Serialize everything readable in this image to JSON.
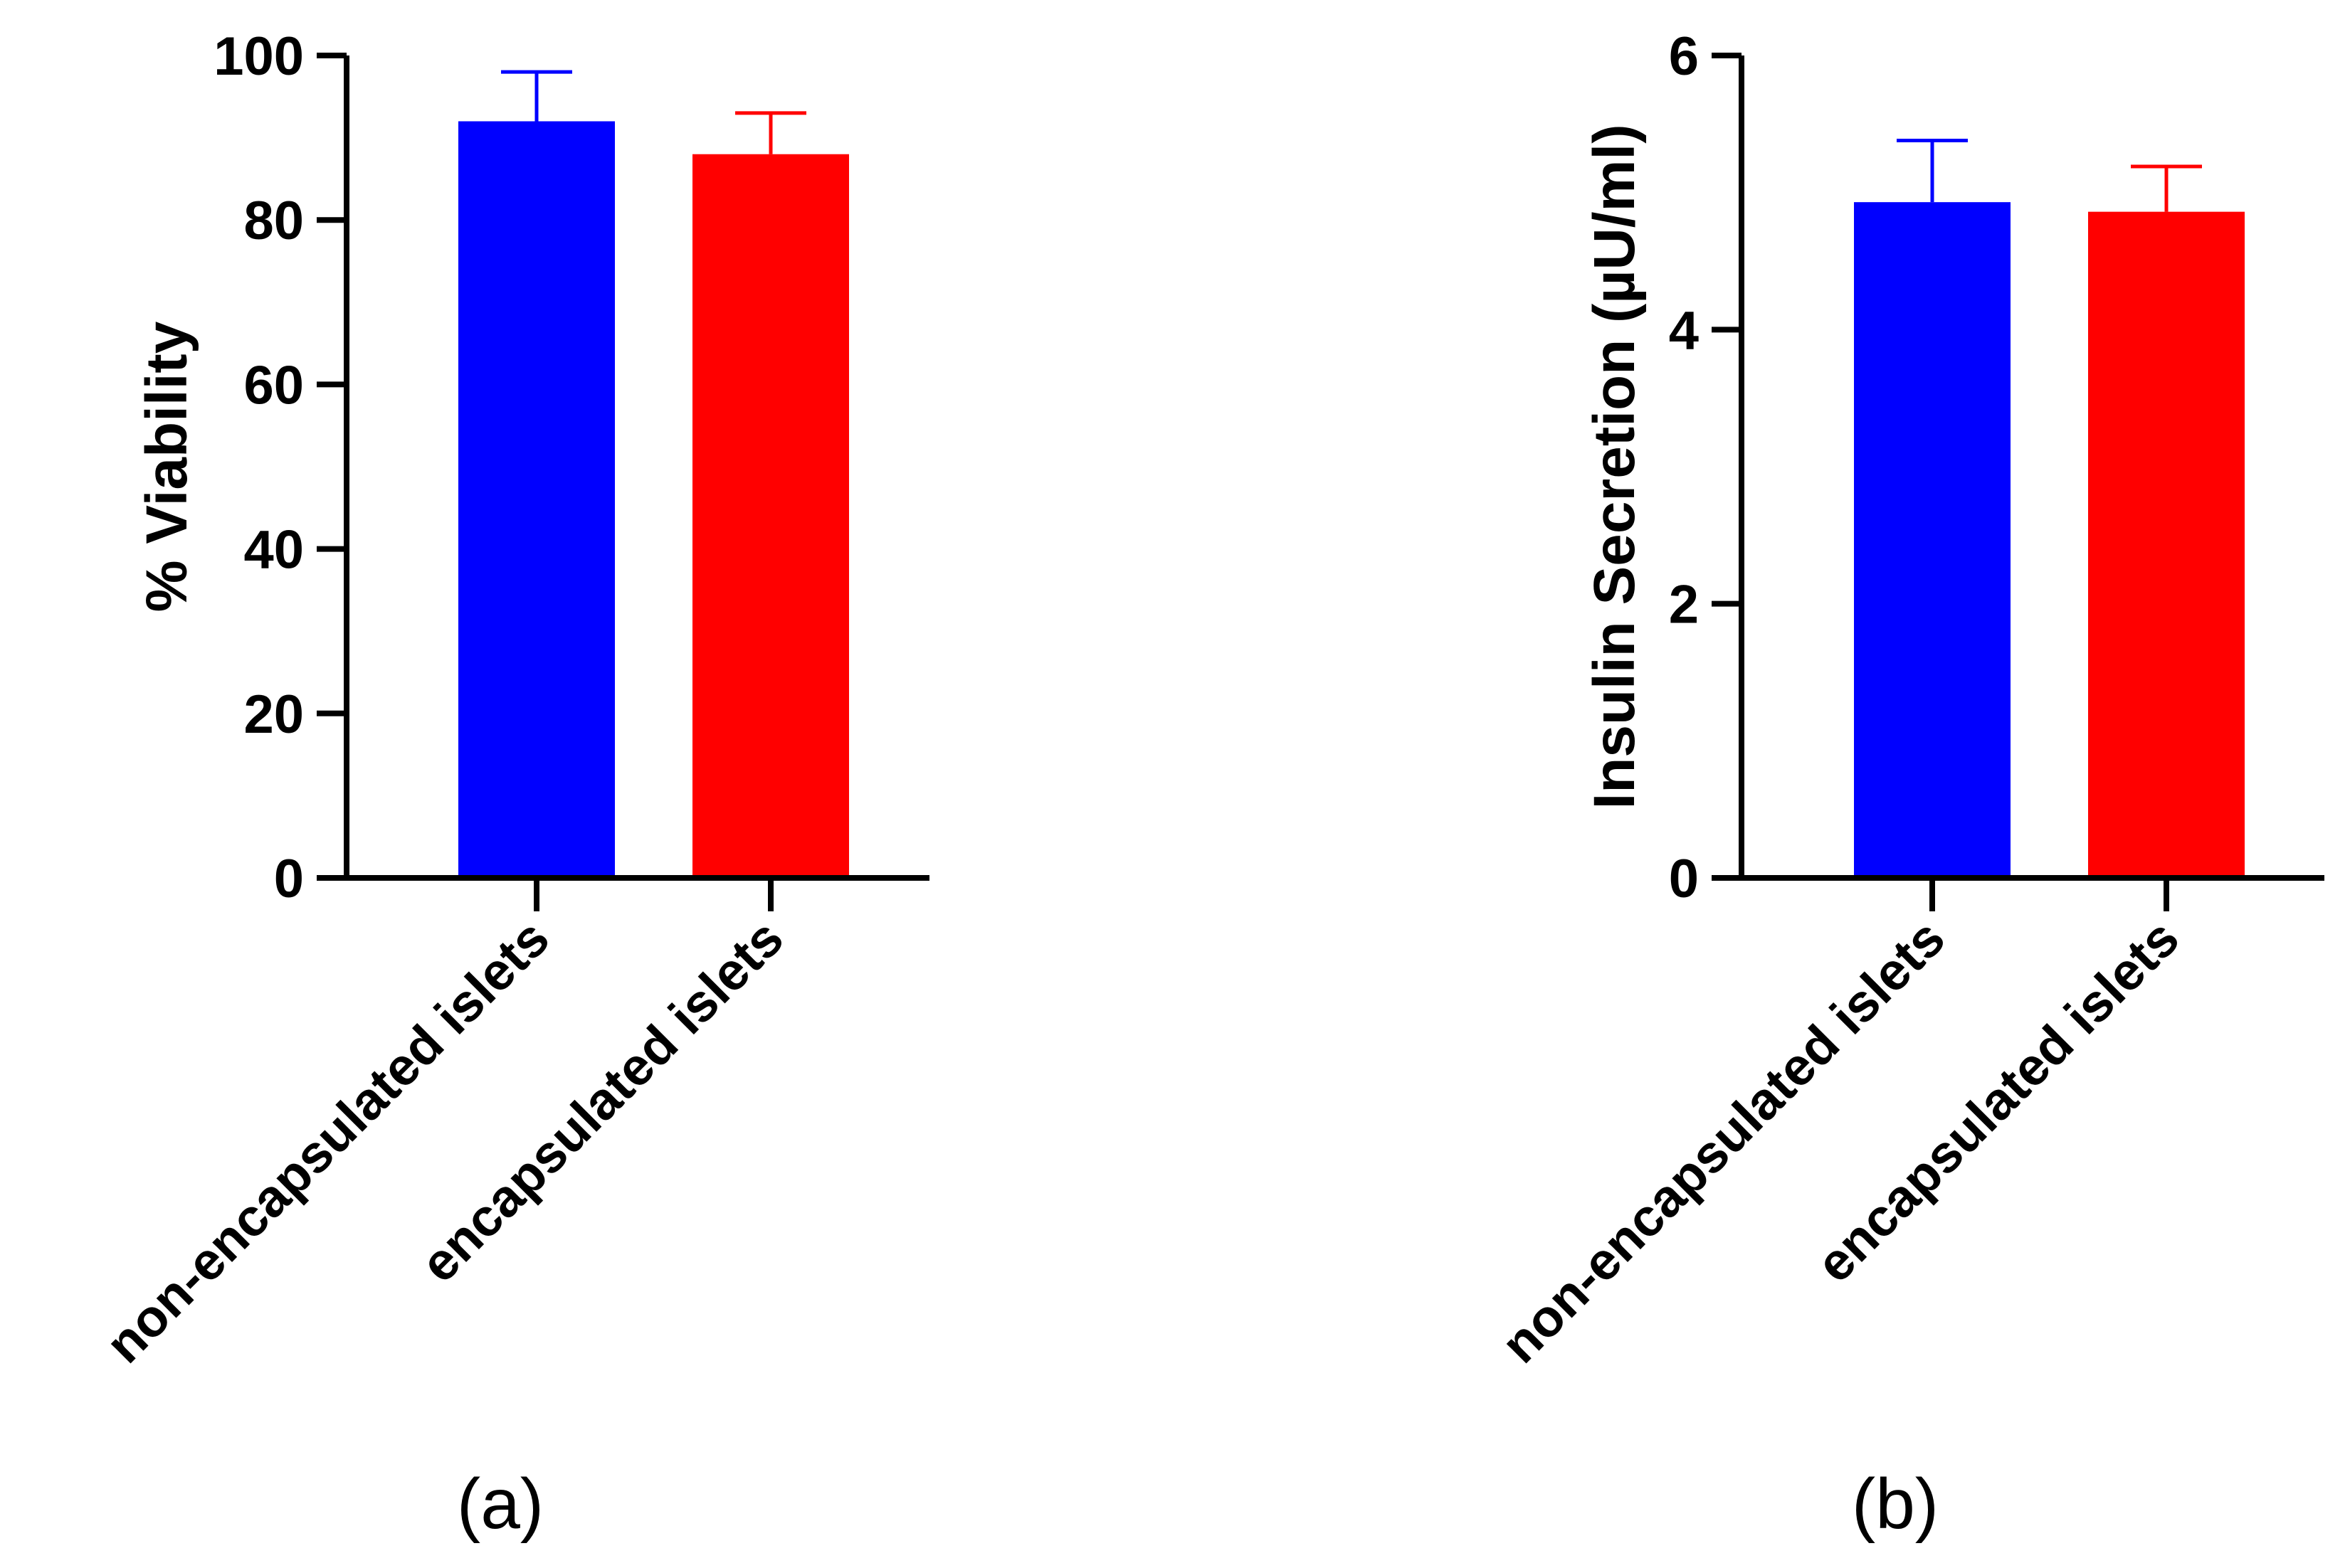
{
  "figure": {
    "panels": [
      "(a)",
      "(b)"
    ]
  },
  "chart_data": [
    {
      "type": "bar",
      "panel": "(a)",
      "title": "",
      "xlabel": "",
      "ylabel": "% Viability",
      "ylim": [
        0,
        100
      ],
      "yticks": [
        0,
        20,
        40,
        60,
        80,
        100
      ],
      "ytick_labels": [
        "0",
        "20",
        "40",
        "60",
        "80",
        "100"
      ],
      "grid": false,
      "categories": [
        "non-encapsulated islets",
        "encapsulated islets"
      ],
      "values": [
        92,
        88
      ],
      "errors": [
        6,
        5
      ],
      "colors": [
        "#0000FF",
        "#FF0000"
      ]
    },
    {
      "type": "bar",
      "panel": "(b)",
      "title": "",
      "xlabel": "",
      "ylabel": "Insulin Secretion (µU/ml)",
      "ylim": [
        0,
        6
      ],
      "yticks": [
        0,
        2,
        4,
        6
      ],
      "ytick_labels": [
        "0",
        "2",
        "4",
        "6"
      ],
      "grid": false,
      "categories": [
        "non-encapsulated islets",
        "encapsulated islets"
      ],
      "values": [
        4.93,
        4.86
      ],
      "errors": [
        0.45,
        0.33
      ],
      "colors": [
        "#0000FF",
        "#FF0000"
      ]
    }
  ]
}
